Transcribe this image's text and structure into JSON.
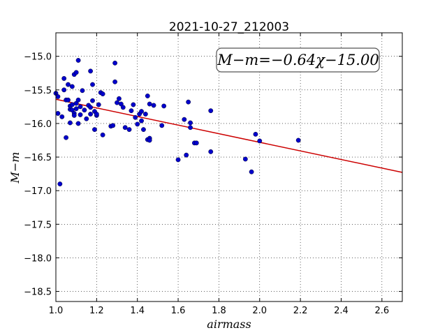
{
  "chart_data": {
    "type": "scatter",
    "title": "2021-10-27_212003",
    "xlabel": "airmass",
    "ylabel": "M−m",
    "xlim": [
      1.0,
      2.7
    ],
    "ylim": [
      -18.65,
      -14.65
    ],
    "y_inverted": true,
    "grid": true,
    "xticks": [
      1.0,
      1.2,
      1.4,
      1.6,
      1.8,
      2.0,
      2.2,
      2.4,
      2.6
    ],
    "xtick_labels": [
      "1.0",
      "1.2",
      "1.4",
      "1.6",
      "1.8",
      "2.0",
      "2.2",
      "2.4",
      "2.6"
    ],
    "yticks": [
      -15.0,
      -15.5,
      -16.0,
      -16.5,
      -17.0,
      -17.5,
      -18.0,
      -18.5
    ],
    "ytick_labels": [
      "−15.0",
      "−15.5",
      "−16.0",
      "−16.5",
      "−17.0",
      "−17.5",
      "−18.0",
      "−18.5"
    ],
    "annotation": "M−m=−0.64χ−15.00",
    "fit": {
      "slope": -0.64,
      "intercept": -15.0,
      "color": "#cc0000"
    },
    "point_color": "#0000cc",
    "points": [
      [
        1.0,
        -15.55
      ],
      [
        1.01,
        -15.6
      ],
      [
        1.01,
        -15.85
      ],
      [
        1.02,
        -16.9
      ],
      [
        1.03,
        -15.9
      ],
      [
        1.04,
        -15.5
      ],
      [
        1.04,
        -15.33
      ],
      [
        1.05,
        -16.21
      ],
      [
        1.05,
        -15.65
      ],
      [
        1.06,
        -15.42
      ],
      [
        1.06,
        -15.65
      ],
      [
        1.07,
        -15.79
      ],
      [
        1.07,
        -15.99
      ],
      [
        1.07,
        -15.74
      ],
      [
        1.08,
        -15.8
      ],
      [
        1.08,
        -15.72
      ],
      [
        1.08,
        -15.45
      ],
      [
        1.09,
        -15.85
      ],
      [
        1.09,
        -15.88
      ],
      [
        1.09,
        -15.27
      ],
      [
        1.1,
        -15.7
      ],
      [
        1.1,
        -15.24
      ],
      [
        1.1,
        -15.78
      ],
      [
        1.11,
        -16.0
      ],
      [
        1.11,
        -15.65
      ],
      [
        1.11,
        -15.06
      ],
      [
        1.12,
        -15.75
      ],
      [
        1.12,
        -15.87
      ],
      [
        1.13,
        -15.51
      ],
      [
        1.14,
        -15.8
      ],
      [
        1.15,
        -15.93
      ],
      [
        1.16,
        -15.73
      ],
      [
        1.17,
        -15.76
      ],
      [
        1.17,
        -15.86
      ],
      [
        1.17,
        -15.22
      ],
      [
        1.18,
        -15.42
      ],
      [
        1.18,
        -15.66
      ],
      [
        1.19,
        -15.82
      ],
      [
        1.19,
        -16.09
      ],
      [
        1.2,
        -15.88
      ],
      [
        1.2,
        -15.86
      ],
      [
        1.21,
        -15.72
      ],
      [
        1.22,
        -15.54
      ],
      [
        1.23,
        -15.56
      ],
      [
        1.23,
        -16.17
      ],
      [
        1.27,
        -16.04
      ],
      [
        1.28,
        -16.03
      ],
      [
        1.29,
        -15.1
      ],
      [
        1.29,
        -15.38
      ],
      [
        1.3,
        -15.69
      ],
      [
        1.31,
        -15.63
      ],
      [
        1.32,
        -15.71
      ],
      [
        1.33,
        -15.76
      ],
      [
        1.34,
        -16.06
      ],
      [
        1.36,
        -16.09
      ],
      [
        1.37,
        -15.81
      ],
      [
        1.38,
        -15.72
      ],
      [
        1.39,
        -15.91
      ],
      [
        1.4,
        -16.01
      ],
      [
        1.41,
        -15.86
      ],
      [
        1.42,
        -15.96
      ],
      [
        1.42,
        -15.82
      ],
      [
        1.43,
        -16.09
      ],
      [
        1.44,
        -15.86
      ],
      [
        1.45,
        -15.59
      ],
      [
        1.45,
        -16.24
      ],
      [
        1.46,
        -16.22
      ],
      [
        1.46,
        -16.25
      ],
      [
        1.46,
        -15.71
      ],
      [
        1.48,
        -15.73
      ],
      [
        1.52,
        -16.03
      ],
      [
        1.53,
        -15.74
      ],
      [
        1.6,
        -16.54
      ],
      [
        1.63,
        -15.94
      ],
      [
        1.64,
        -16.47
      ],
      [
        1.65,
        -15.68
      ],
      [
        1.66,
        -16.06
      ],
      [
        1.66,
        -15.99
      ],
      [
        1.68,
        -16.29
      ],
      [
        1.69,
        -16.29
      ],
      [
        1.76,
        -16.42
      ],
      [
        1.76,
        -15.81
      ],
      [
        1.93,
        -16.53
      ],
      [
        1.96,
        -16.72
      ],
      [
        1.98,
        -16.16
      ],
      [
        2.0,
        -16.26
      ],
      [
        2.19,
        -16.25
      ]
    ]
  }
}
